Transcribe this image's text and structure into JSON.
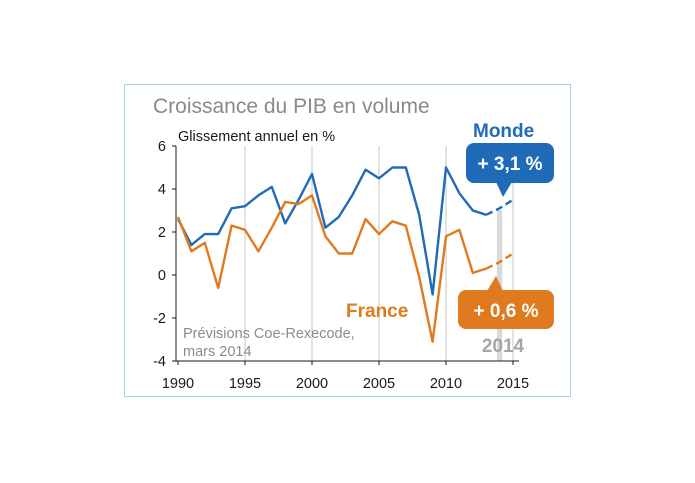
{
  "chart_data": {
    "type": "line",
    "title": "Croissance du PIB en volume",
    "subtitle": "Glissement annuel en %",
    "source": [
      "Prévisions Coe-Rexecode,",
      "mars 2014"
    ],
    "xlim": [
      1990,
      2015
    ],
    "ylim": [
      -4,
      6
    ],
    "x_ticks": [
      "1990",
      "1995",
      "2000",
      "2005",
      "2010",
      "2015"
    ],
    "y_ticks": [
      "6",
      "4",
      "2",
      "0",
      "-2",
      "-4"
    ],
    "grid": "vertical",
    "forecast_band": {
      "from": 2013.8,
      "to": 2014.2,
      "label": "2014",
      "color": "#d9d9d9"
    },
    "series": [
      {
        "name": "Monde",
        "color": "#1f6bb8",
        "x": [
          1990,
          1991,
          1992,
          1993,
          1994,
          1995,
          1996,
          1997,
          1998,
          1999,
          2000,
          2001,
          2002,
          2003,
          2004,
          2005,
          2006,
          2007,
          2008,
          2009,
          2010,
          2011,
          2012,
          2013,
          2014,
          2015
        ],
        "values": [
          2.6,
          1.4,
          1.9,
          1.9,
          3.1,
          3.2,
          3.7,
          4.1,
          2.4,
          3.5,
          4.7,
          2.2,
          2.7,
          3.7,
          4.9,
          4.5,
          5.0,
          5.0,
          2.8,
          -0.9,
          5.0,
          3.8,
          3.0,
          2.8,
          3.1,
          3.5
        ],
        "forecast_from": 2013,
        "callout": "+ 3,1 %"
      },
      {
        "name": "France",
        "color": "#e07a1e",
        "x": [
          1990,
          1991,
          1992,
          1993,
          1994,
          1995,
          1996,
          1997,
          1998,
          1999,
          2000,
          2001,
          2002,
          2003,
          2004,
          2005,
          2006,
          2007,
          2008,
          2009,
          2010,
          2011,
          2012,
          2013,
          2014,
          2015
        ],
        "values": [
          2.7,
          1.1,
          1.5,
          -0.6,
          2.3,
          2.1,
          1.1,
          2.2,
          3.4,
          3.3,
          3.7,
          1.8,
          1.0,
          1.0,
          2.6,
          1.9,
          2.5,
          2.3,
          -0.1,
          -3.1,
          1.8,
          2.1,
          0.1,
          0.3,
          0.6,
          1.0
        ],
        "forecast_from": 2013,
        "callout": "+ 0,6 %"
      }
    ]
  }
}
